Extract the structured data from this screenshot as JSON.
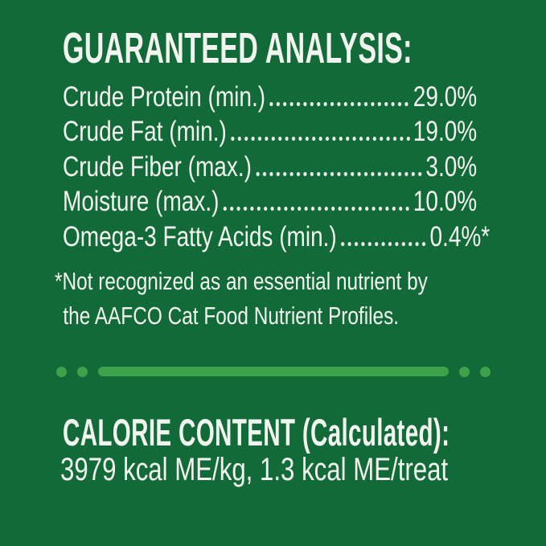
{
  "panel": {
    "background_color": "#136A39",
    "text_color": "#F2F5EF",
    "accent_green": "#3EA24A"
  },
  "guaranteed_analysis": {
    "title": "GUARANTEED ANALYSIS:",
    "rows": [
      {
        "label": "Crude Protein (min.)",
        "value": "29.0%"
      },
      {
        "label": "Crude Fat (min.)",
        "value": "19.0%"
      },
      {
        "label": "Crude Fiber (max.)",
        "value": "3.0%"
      },
      {
        "label": "Moisture (max.)",
        "value": "10.0%"
      },
      {
        "label": "Omega-3 Fatty Acids (min.)",
        "value": "0.4%*"
      }
    ],
    "footnote_lines": [
      "*Not recognized as an essential nutrient by",
      "the AAFCO Cat Food Nutrient Profiles."
    ]
  },
  "calorie_content": {
    "title": "CALORIE CONTENT (Calculated):",
    "value": "3979 kcal ME/kg, 1.3 kcal ME/treat"
  }
}
